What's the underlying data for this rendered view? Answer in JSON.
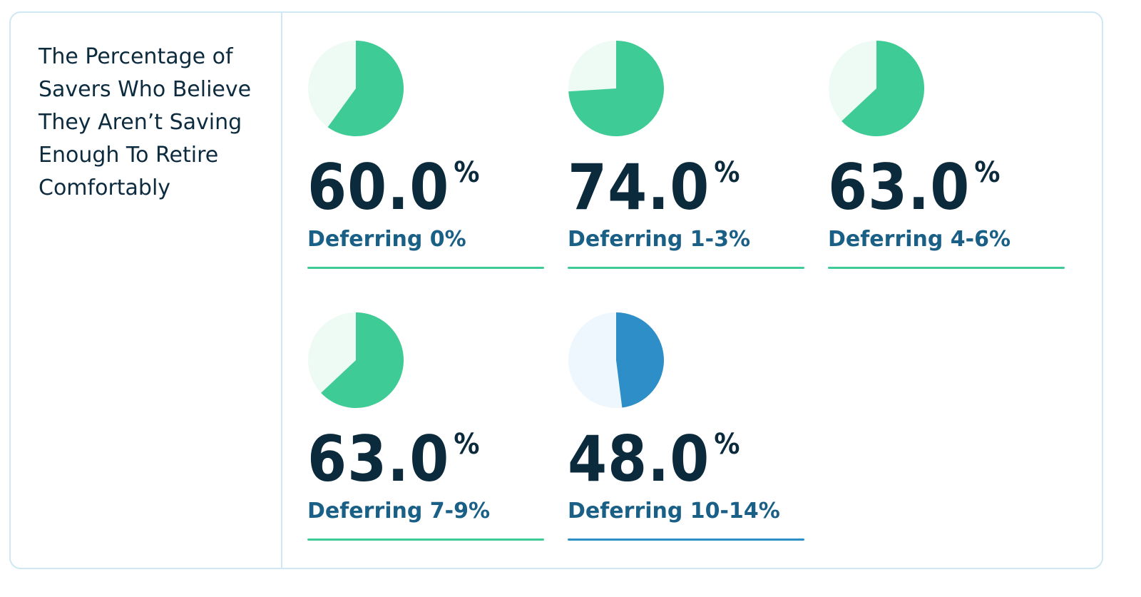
{
  "side_title": "The Percentage of Savers Who Believe They Aren’t Saving Enough To Retire Comfortably",
  "percent_sign": "%",
  "colors": {
    "green": "#3ecb96",
    "green_light": "#eefbf5",
    "blue": "#2e8ec8",
    "blue_light": "#eef7fd",
    "border": "#cfe8f3"
  },
  "chart_data": {
    "type": "pie",
    "title": "The Percentage of Savers Who Believe They Aren’t Saving Enough To Retire Comfortably",
    "categories": [
      "Deferring 0%",
      "Deferring 1-3%",
      "Deferring 4-6%",
      "Deferring 7-9%",
      "Deferring 10-14%"
    ],
    "values": [
      60.0,
      74.0,
      63.0,
      63.0,
      48.0
    ],
    "display_values": [
      "60.0",
      "74.0",
      "63.0",
      "63.0",
      "48.0"
    ],
    "unit": "%",
    "series_colors": [
      "green",
      "green",
      "green",
      "green",
      "blue"
    ]
  }
}
